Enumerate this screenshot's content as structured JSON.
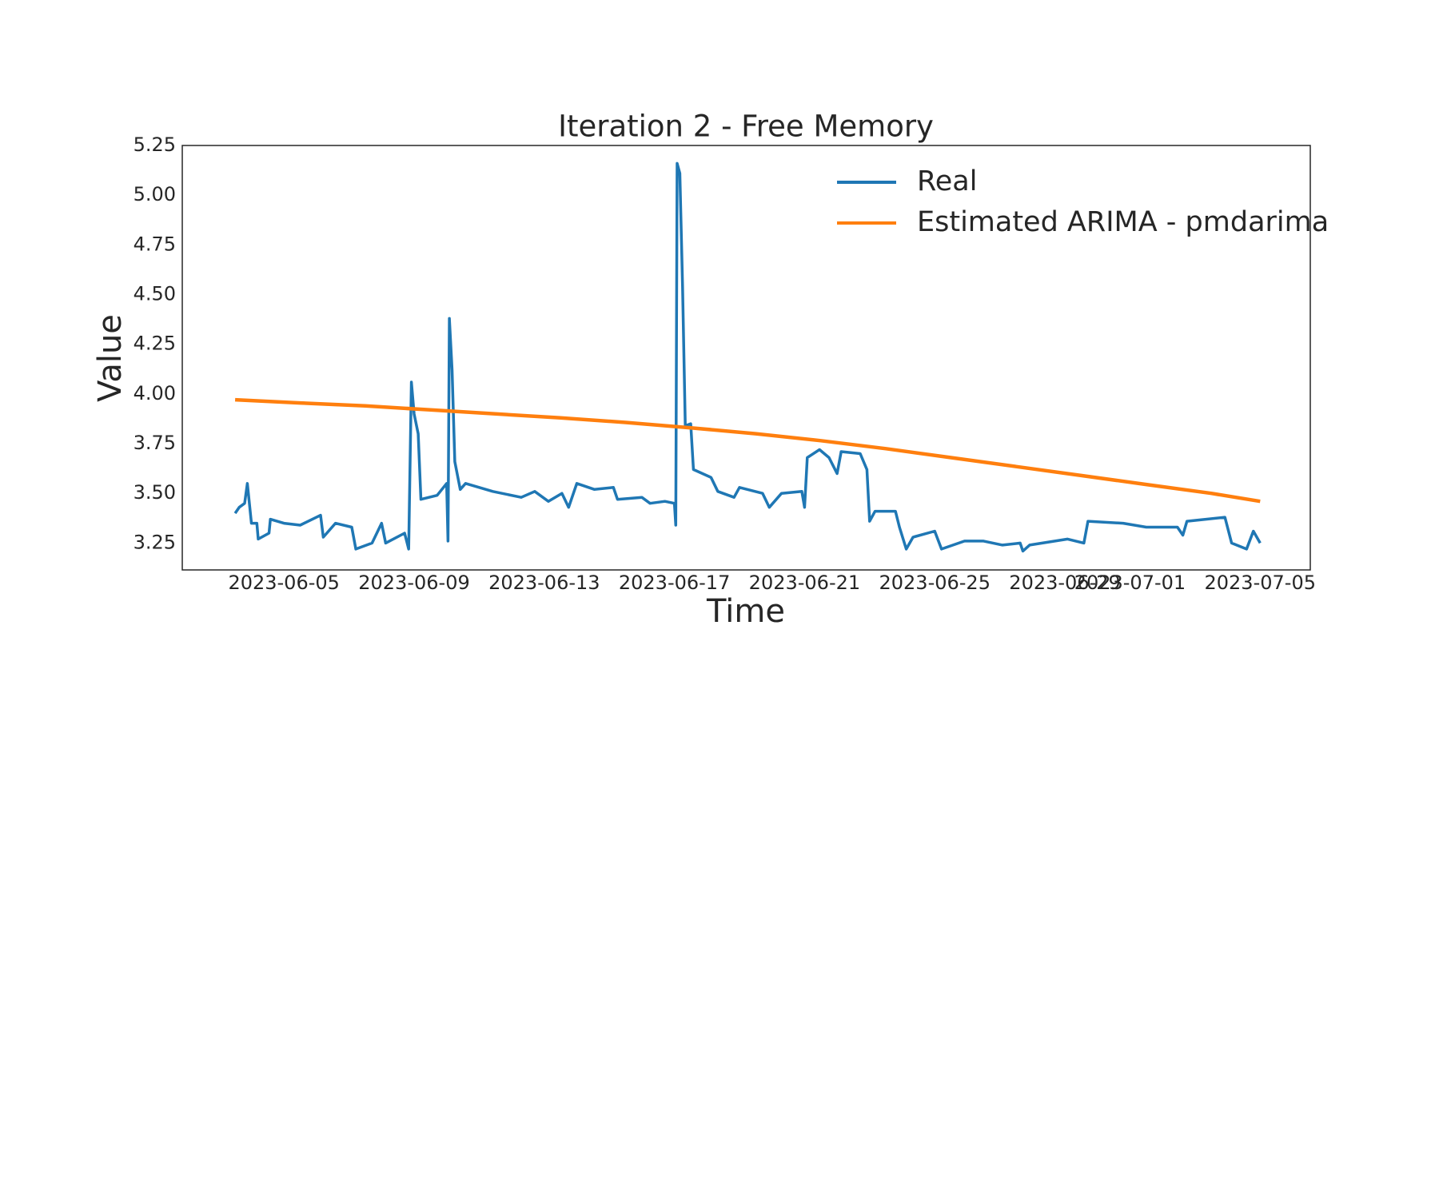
{
  "chart_data": {
    "type": "line",
    "title": "Iteration 2 - Free Memory",
    "x_label": "Time",
    "y_label": "Value",
    "xlim": [
      "2023-06-01 21:00",
      "2023-07-06 13:00"
    ],
    "xticks": [
      "2023-06-05",
      "2023-06-09",
      "2023-06-13",
      "2023-06-17",
      "2023-06-21",
      "2023-06-25",
      "2023-06-29",
      "2023-07-01",
      "2023-07-05"
    ],
    "ylim": [
      3.115,
      5.25
    ],
    "yticks": [
      3.25,
      {
        "value": 3.5,
        "label": "3.50"
      },
      3.75,
      {
        "value": 4,
        "label": "4.00"
      },
      4.25,
      {
        "value": 4.5,
        "label": "4.50"
      },
      4.75,
      {
        "value": 5,
        "label": "5.00"
      },
      5.25
    ],
    "grid": false,
    "legend": "upper right",
    "series": [
      {
        "name": "Real",
        "color": "#1f77b4",
        "x": [
          "2023-06-03 12:00",
          "2023-06-03 15:00",
          "2023-06-03 19:00",
          "2023-06-03 21:00",
          "2023-06-04 00:00",
          "2023-06-04 04:00",
          "2023-06-04 05:00",
          "2023-06-04 13:00",
          "2023-06-04 14:00",
          "2023-06-05 00:00",
          "2023-06-05 12:00",
          "2023-06-06 03:00",
          "2023-06-06 05:00",
          "2023-06-06 14:00",
          "2023-06-07 02:00",
          "2023-06-07 05:00",
          "2023-06-07 17:00",
          "2023-06-08 00:00",
          "2023-06-08 03:00",
          "2023-06-08 17:00",
          "2023-06-08 20:00",
          "2023-06-08 22:00",
          "2023-06-09 00:00",
          "2023-06-09 03:00",
          "2023-06-09 05:00",
          "2023-06-09 17:00",
          "2023-06-10 00:00",
          "2023-06-10 01:00",
          "2023-06-10 02:00",
          "2023-06-10 04:00",
          "2023-06-10 06:00",
          "2023-06-10 10:00",
          "2023-06-10 14:00",
          "2023-06-11 10:00",
          "2023-06-12 07:00",
          "2023-06-12 17:00",
          "2023-06-13 03:00",
          "2023-06-13 13:00",
          "2023-06-13 18:00",
          "2023-06-14 00:00",
          "2023-06-14 13:00",
          "2023-06-15 03:00",
          "2023-06-15 06:00",
          "2023-06-16 00:00",
          "2023-06-16 06:00",
          "2023-06-16 17:00",
          "2023-06-17 00:00",
          "2023-06-17 01:00",
          "2023-06-17 02:00",
          "2023-06-17 04:00",
          "2023-06-17 06:00",
          "2023-06-17 08:00",
          "2023-06-17 12:00",
          "2023-06-17 14:00",
          "2023-06-18 03:00",
          "2023-06-18 08:00",
          "2023-06-18 20:00",
          "2023-06-19 00:00",
          "2023-06-19 17:00",
          "2023-06-19 22:00",
          "2023-06-20 07:00",
          "2023-06-20 22:00",
          "2023-06-21 00:00",
          "2023-06-21 02:00",
          "2023-06-21 11:00",
          "2023-06-21 18:00",
          "2023-06-22 00:00",
          "2023-06-22 03:00",
          "2023-06-22 17:00",
          "2023-06-22 22:00",
          "2023-06-23 00:00",
          "2023-06-23 04:00",
          "2023-06-23 19:00",
          "2023-06-23 22:00",
          "2023-06-24 03:00",
          "2023-06-24 08:00",
          "2023-06-25 00:00",
          "2023-06-25 05:00",
          "2023-06-25 22:00",
          "2023-06-26 12:00",
          "2023-06-27 02:00",
          "2023-06-27 15:00",
          "2023-06-27 17:00",
          "2023-06-27 22:00",
          "2023-06-29 02:00",
          "2023-06-29 14:00",
          "2023-06-29 17:00",
          "2023-06-30 19:00",
          "2023-07-01 12:00",
          "2023-07-02 11:00",
          "2023-07-02 15:00",
          "2023-07-02 18:00",
          "2023-07-03 22:00",
          "2023-07-04 03:00",
          "2023-07-04 14:00",
          "2023-07-04 19:00",
          "2023-07-05 00:00"
        ],
        "values": [
          3.4,
          3.43,
          3.45,
          3.55,
          3.35,
          3.35,
          3.27,
          3.3,
          3.37,
          3.35,
          3.34,
          3.39,
          3.28,
          3.35,
          3.33,
          3.22,
          3.25,
          3.35,
          3.25,
          3.3,
          3.22,
          4.06,
          3.9,
          3.8,
          3.47,
          3.49,
          3.55,
          3.26,
          4.38,
          4.12,
          3.66,
          3.52,
          3.55,
          3.51,
          3.48,
          3.51,
          3.46,
          3.5,
          3.43,
          3.55,
          3.52,
          3.53,
          3.47,
          3.48,
          3.45,
          3.46,
          3.45,
          3.34,
          5.16,
          5.11,
          4.54,
          3.84,
          3.85,
          3.62,
          3.58,
          3.51,
          3.48,
          3.53,
          3.5,
          3.43,
          3.5,
          3.51,
          3.43,
          3.68,
          3.72,
          3.68,
          3.6,
          3.71,
          3.7,
          3.62,
          3.36,
          3.41,
          3.41,
          3.33,
          3.22,
          3.28,
          3.31,
          3.22,
          3.26,
          3.26,
          3.24,
          3.25,
          3.21,
          3.24,
          3.27,
          3.25,
          3.36,
          3.35,
          3.33,
          3.33,
          3.29,
          3.36,
          3.38,
          3.25,
          3.22,
          3.31,
          3.25
        ]
      },
      {
        "name": "Estimated ARIMA - pmdarima",
        "color": "#ff7f0e",
        "x": [
          "2023-06-03 12:00",
          "2023-06-05 12:00",
          "2023-06-07 12:00",
          "2023-06-09 12:00",
          "2023-06-11 12:00",
          "2023-06-13 12:00",
          "2023-06-15 12:00",
          "2023-06-17 12:00",
          "2023-06-19 12:00",
          "2023-06-21 12:00",
          "2023-06-23 12:00",
          "2023-06-25 12:00",
          "2023-06-27 12:00",
          "2023-06-29 12:00",
          "2023-07-01 12:00",
          "2023-07-03 12:00",
          "2023-07-05 00:00"
        ],
        "values": [
          3.971,
          3.955,
          3.94,
          3.92,
          3.9,
          3.88,
          3.857,
          3.83,
          3.8,
          3.765,
          3.725,
          3.68,
          3.635,
          3.59,
          3.545,
          3.5,
          3.46
        ]
      }
    ]
  }
}
